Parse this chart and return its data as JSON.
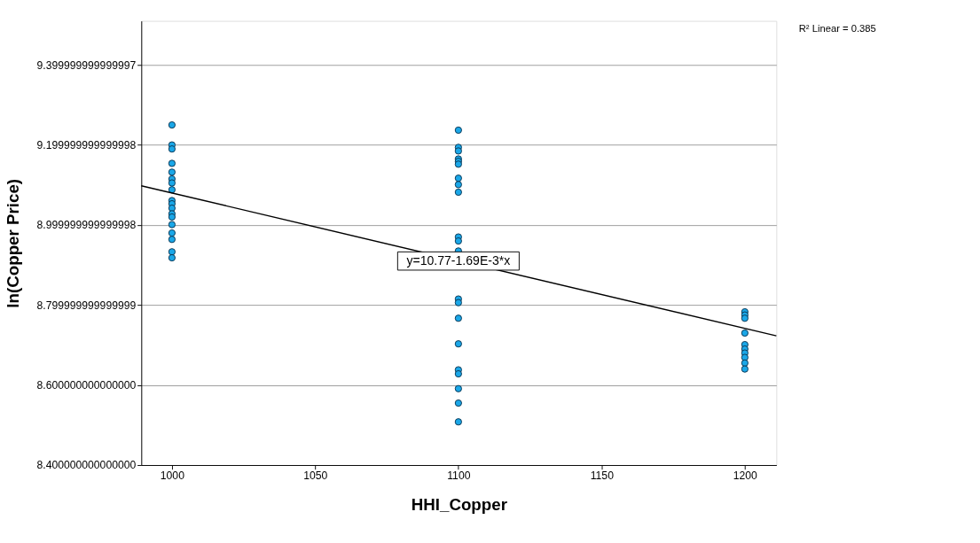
{
  "chart_data": {
    "type": "scatter",
    "xlabel": "HHI_Copper",
    "ylabel": "ln(Copper Price)",
    "xlim": [
      989.3,
      1211
    ],
    "ylim": [
      8.4,
      9.51
    ],
    "xticks": [
      1000,
      1050,
      1100,
      1150,
      1200
    ],
    "yticks": [
      {
        "value": 8.4,
        "label": "8.400000000000000"
      },
      {
        "value": 8.6,
        "label": "8.600000000000000"
      },
      {
        "value": 8.8,
        "label": "8.799999999999999"
      },
      {
        "value": 9.0,
        "label": "8.999999999999998"
      },
      {
        "value": 9.2,
        "label": "9.199999999999998"
      },
      {
        "value": 9.4,
        "label": "9.399999999999997"
      }
    ],
    "grid": "y",
    "annotations": [
      {
        "text": "y=10.77-1.69E-3*x",
        "x": 1100,
        "y": 8.91
      },
      "R² Linear = 0.385"
    ],
    "series": [
      {
        "marker": "circle",
        "color": "#1aa7e8",
        "x": [
          1000,
          1000,
          1000,
          1000,
          1000,
          1000,
          1000,
          1000,
          1000,
          1000,
          1000,
          1000,
          1000,
          1000,
          1000,
          1000,
          1000,
          1000,
          1100,
          1100,
          1100,
          1100,
          1100,
          1100,
          1100,
          1100,
          1100,
          1100,
          1100,
          1100,
          1100,
          1100,
          1100,
          1100,
          1100,
          1100,
          1100,
          1100,
          1100,
          1200,
          1200,
          1200,
          1200,
          1200,
          1200,
          1200,
          1200,
          1200,
          1200
        ],
        "values": [
          9.25,
          9.2,
          9.19,
          9.154,
          9.132,
          9.115,
          9.105,
          9.088,
          9.061,
          9.053,
          9.042,
          9.028,
          9.02,
          9.001,
          8.98,
          8.964,
          8.933,
          8.918,
          9.237,
          9.194,
          9.185,
          9.165,
          9.159,
          9.152,
          9.117,
          9.101,
          9.082,
          8.97,
          8.96,
          8.935,
          8.815,
          8.806,
          8.767,
          8.703,
          8.638,
          8.628,
          8.591,
          8.555,
          8.508,
          8.783,
          8.775,
          8.767,
          8.73,
          8.701,
          8.69,
          8.68,
          8.669,
          8.655,
          8.64
        ]
      },
      {
        "type": "line",
        "color": "#000000",
        "x": [
          989.3,
          1211
        ],
        "values": [
          9.098,
          8.723
        ]
      }
    ]
  }
}
